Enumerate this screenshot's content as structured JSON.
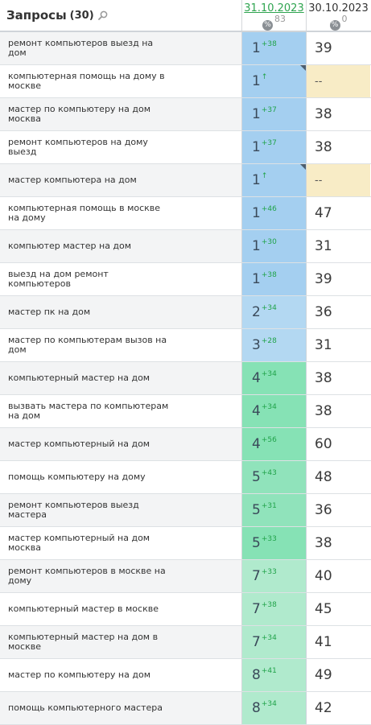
{
  "header": {
    "title": "Запросы",
    "count": "(30)",
    "date_current": "31.10.2023",
    "date_current_pct": "83",
    "date_prev": "30.10.2023",
    "date_prev_pct": "0"
  },
  "colors": {
    "top1": "#a4cff0",
    "top3": "#b3d8f2",
    "top5": "#86e2b5",
    "top10": "#b0eacd",
    "delta": "#21a34a",
    "missing": "#f8ecc6"
  },
  "rows": [
    {
      "query": "ремонт компьютеров выезд на дом",
      "pos": "1",
      "delta": "+38",
      "prev": "39",
      "tier": "top1",
      "corner": false
    },
    {
      "query": "компьютерная помощь на дому в москве",
      "pos": "1",
      "delta": "↑",
      "prev": "--",
      "tier": "top1",
      "corner": true
    },
    {
      "query": "мастер по компьютеру на дом москва",
      "pos": "1",
      "delta": "+37",
      "prev": "38",
      "tier": "top1",
      "corner": false
    },
    {
      "query": "ремонт компьютеров на дому выезд",
      "pos": "1",
      "delta": "+37",
      "prev": "38",
      "tier": "top1",
      "corner": false
    },
    {
      "query": "мастер компьютера на дом",
      "pos": "1",
      "delta": "↑",
      "prev": "--",
      "tier": "top1",
      "corner": true
    },
    {
      "query": "компьютерная помощь в москве на дому",
      "pos": "1",
      "delta": "+46",
      "prev": "47",
      "tier": "top1",
      "corner": false
    },
    {
      "query": "компьютер мастер на дом",
      "pos": "1",
      "delta": "+30",
      "prev": "31",
      "tier": "top1",
      "corner": false
    },
    {
      "query": "выезд на дом ремонт компьютеров",
      "pos": "1",
      "delta": "+38",
      "prev": "39",
      "tier": "top1",
      "corner": false
    },
    {
      "query": "мастер пк на дом",
      "pos": "2",
      "delta": "+34",
      "prev": "36",
      "tier": "top3",
      "corner": false
    },
    {
      "query": "мастер по компьютерам вызов на дом",
      "pos": "3",
      "delta": "+28",
      "prev": "31",
      "tier": "top3",
      "corner": false
    },
    {
      "query": "компьютерный мастер на дом",
      "pos": "4",
      "delta": "+34",
      "prev": "38",
      "tier": "top5",
      "corner": false
    },
    {
      "query": "вызвать мастера по компьютерам на дом",
      "pos": "4",
      "delta": "+34",
      "prev": "38",
      "tier": "top5",
      "corner": false
    },
    {
      "query": "мастер компьютерный на дом",
      "pos": "4",
      "delta": "+56",
      "prev": "60",
      "tier": "top5",
      "corner": false
    },
    {
      "query": "помощь компьютеру на дому",
      "pos": "5",
      "delta": "+43",
      "prev": "48",
      "tier": "top5b",
      "corner": false
    },
    {
      "query": "ремонт компьютеров выезд мастера",
      "pos": "5",
      "delta": "+31",
      "prev": "36",
      "tier": "top5b",
      "corner": false
    },
    {
      "query": "мастер компьютерный на дом москва",
      "pos": "5",
      "delta": "+33",
      "prev": "38",
      "tier": "top5",
      "corner": false
    },
    {
      "query": "ремонт компьютеров в москве на дому",
      "pos": "7",
      "delta": "+33",
      "prev": "40",
      "tier": "top10",
      "corner": false
    },
    {
      "query": "компьютерный мастер в москве",
      "pos": "7",
      "delta": "+38",
      "prev": "45",
      "tier": "top10",
      "corner": false
    },
    {
      "query": "компьютерный мастер на дом в москве",
      "pos": "7",
      "delta": "+34",
      "prev": "41",
      "tier": "top10",
      "corner": false
    },
    {
      "query": "мастер по компьютеру на дом",
      "pos": "8",
      "delta": "+41",
      "prev": "49",
      "tier": "top10",
      "corner": false
    },
    {
      "query": "помощь компьютерного мастера",
      "pos": "8",
      "delta": "+34",
      "prev": "42",
      "tier": "top10",
      "corner": false
    }
  ]
}
